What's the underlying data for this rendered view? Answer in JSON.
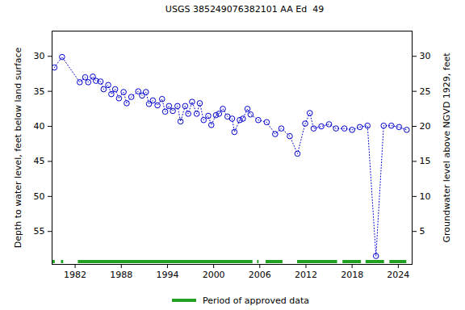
{
  "chart_data": {
    "type": "scatter",
    "title": "USGS 385249076382101 AA Ed  49",
    "ylabel": "Depth to water level, feet below land surface",
    "y2label": "Groundwater level above NGVD 1929, feet",
    "x": [
      1979.3,
      1980.3,
      1982.6,
      1983.3,
      1983.7,
      1984.3,
      1984.7,
      1985.3,
      1985.7,
      1986.3,
      1986.7,
      1987.2,
      1987.7,
      1988.3,
      1988.7,
      1989.3,
      1990.2,
      1990.7,
      1991.2,
      1991.6,
      1992.1,
      1992.7,
      1993.3,
      1993.7,
      1994.2,
      1994.7,
      1995.3,
      1995.7,
      1996.3,
      1996.7,
      1997.2,
      1997.8,
      1998.2,
      1998.7,
      1999.3,
      1999.7,
      2000.3,
      2000.7,
      2001.2,
      2001.8,
      2002.4,
      2002.7,
      2003.4,
      2003.8,
      2004.4,
      2004.8,
      2005.8,
      2006.9,
      2008.0,
      2008.8,
      2009.9,
      2010.9,
      2011.9,
      2012.5,
      2013.0,
      2014.0,
      2015.0,
      2015.9,
      2017.0,
      2018.0,
      2019.0,
      2020.0,
      2021.1,
      2022.1,
      2023.1,
      2024.1,
      2025.1
    ],
    "series": [
      {
        "color": "#0000cc",
        "marker": "circle",
        "line_style": "dotted",
        "values": [
          31.6,
          30.1,
          33.7,
          33.0,
          33.7,
          32.9,
          33.5,
          33.6,
          34.7,
          34.1,
          35.4,
          34.7,
          36.0,
          35.1,
          36.7,
          35.8,
          35.0,
          35.6,
          35.1,
          36.8,
          36.3,
          37.0,
          36.1,
          37.9,
          37.1,
          37.8,
          37.1,
          39.3,
          37.1,
          38.2,
          36.5,
          38.2,
          36.7,
          39.1,
          38.5,
          39.8,
          38.4,
          38.2,
          37.5,
          38.6,
          38.9,
          40.8,
          39.1,
          38.9,
          37.5,
          38.3,
          39.1,
          39.4,
          41.1,
          40.3,
          41.4,
          43.9,
          39.6,
          38.1,
          40.3,
          40.0,
          39.7,
          40.3,
          40.3,
          40.5,
          40.1,
          39.9,
          58.5,
          39.9,
          39.9,
          40.1,
          40.5
        ]
      }
    ],
    "approved_periods": {
      "name": "Period of approved data",
      "color": "#22a022",
      "ranges": [
        [
          1979.1,
          1979.4
        ],
        [
          1980.2,
          1980.5
        ],
        [
          1982.4,
          2005.1
        ],
        [
          2005.7,
          2005.9
        ],
        [
          2006.8,
          2009.0
        ],
        [
          2010.9,
          2016.1
        ],
        [
          2016.8,
          2019.2
        ],
        [
          2019.8,
          2022.2
        ],
        [
          2022.9,
          2025.1
        ]
      ]
    },
    "xlim": [
      1979.0,
      2025.8
    ],
    "xticks": [
      1982,
      1988,
      1994,
      2000,
      2006,
      2012,
      2018,
      2024
    ],
    "ylim": [
      59.7,
      26.4
    ],
    "yticks": [
      30,
      35,
      40,
      45,
      50,
      55
    ],
    "y2lim": [
      0.3,
      33.6
    ],
    "y2ticks": [
      5,
      10,
      15,
      20,
      25,
      30
    ],
    "grid": false
  }
}
